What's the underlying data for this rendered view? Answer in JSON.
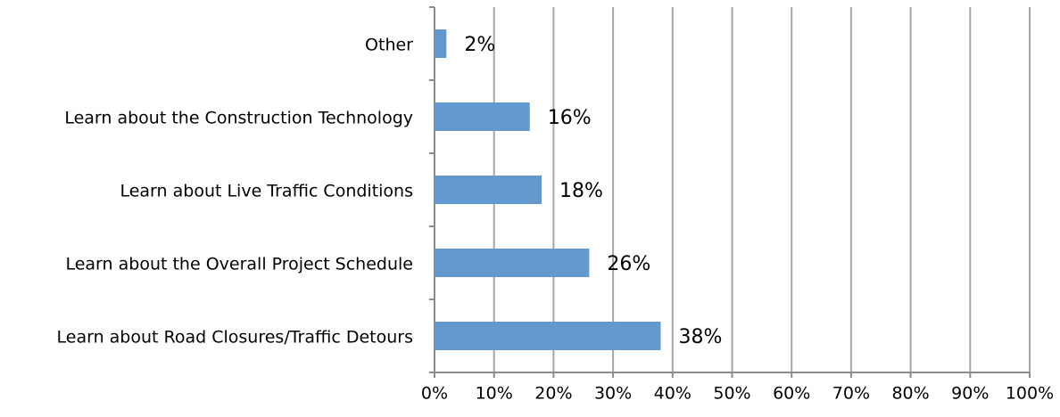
{
  "chart_data": {
    "type": "hbar",
    "categories": [
      "Other",
      "Learn about the Construction Technology",
      "Learn about Live Traffic Conditions",
      "Learn about the Overall Project Schedule",
      "Learn about Road Closures/Traffic Detours"
    ],
    "values": [
      2,
      16,
      18,
      26,
      38
    ],
    "value_labels": [
      "2%",
      "16%",
      "18%",
      "26%",
      "38%"
    ],
    "color": "#6399cc",
    "xlim": [
      0,
      100
    ],
    "xticks": [
      {
        "value": 0,
        "label": "0%"
      },
      {
        "value": 10,
        "label": "10%"
      },
      {
        "value": 20,
        "label": "20%"
      },
      {
        "value": 30,
        "label": "30%"
      },
      {
        "value": 40,
        "label": "40%"
      },
      {
        "value": 50,
        "label": "50%"
      },
      {
        "value": 60,
        "label": "60%"
      },
      {
        "value": 70,
        "label": "70%"
      },
      {
        "value": 80,
        "label": "80%"
      },
      {
        "value": 90,
        "label": "90%"
      },
      {
        "value": 100,
        "label": "100%"
      }
    ],
    "grid": true
  }
}
